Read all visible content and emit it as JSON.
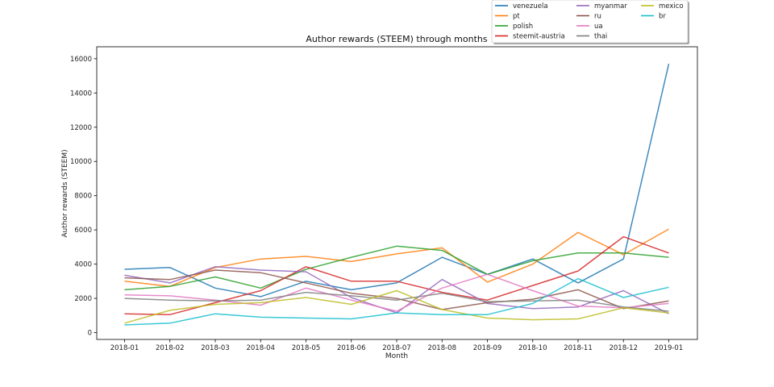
{
  "chart_data": {
    "type": "line",
    "title": "Author rewards (STEEM) through months",
    "xlabel": "Month",
    "ylabel": "Author rewards (STEEM)",
    "ylim": [
      -400,
      16700
    ],
    "yticks": [
      0,
      2000,
      4000,
      6000,
      8000,
      10000,
      12000,
      14000,
      16000
    ],
    "categories": [
      "2018-01",
      "2018-02",
      "2018-03",
      "2018-04",
      "2018-05",
      "2018-06",
      "2018-07",
      "2018-08",
      "2018-09",
      "2018-10",
      "2018-11",
      "2018-12",
      "2019-01"
    ],
    "grid": false,
    "legend_position": "top-right (outside, above plot)",
    "series": [
      {
        "name": "venezuela",
        "color": "#1f77b4",
        "values": [
          3700,
          3800,
          2600,
          2100,
          3000,
          2500,
          2900,
          4400,
          3400,
          4300,
          2900,
          4300,
          15700
        ]
      },
      {
        "name": "pt",
        "color": "#ff7f0e",
        "values": [
          3000,
          2700,
          3800,
          4300,
          4450,
          4150,
          4600,
          4950,
          2950,
          4000,
          5850,
          4550,
          6050
        ]
      },
      {
        "name": "polish",
        "color": "#2ca02c",
        "values": [
          2500,
          2700,
          3250,
          2600,
          3700,
          4400,
          5050,
          4800,
          3400,
          4200,
          4650,
          4650,
          4400
        ]
      },
      {
        "name": "steemit-austria",
        "color": "#d62728",
        "values": [
          1100,
          1050,
          1750,
          2450,
          3850,
          3000,
          3000,
          2350,
          1900,
          2750,
          3600,
          5600,
          4650
        ]
      },
      {
        "name": "myanmar",
        "color": "#9467bd",
        "values": [
          3350,
          2900,
          3850,
          3650,
          3550,
          2050,
          1150,
          3100,
          1700,
          1400,
          1500,
          2450,
          1100
        ]
      },
      {
        "name": "ru",
        "color": "#8c564b",
        "values": [
          3200,
          3100,
          3650,
          3500,
          2900,
          2300,
          2000,
          1350,
          1750,
          1950,
          2500,
          1400,
          1850
        ]
      },
      {
        "name": "ua",
        "color": "#e377c2",
        "values": [
          2200,
          2150,
          1900,
          1600,
          2600,
          1900,
          1250,
          2600,
          3400,
          2450,
          1550,
          1450,
          1700
        ]
      },
      {
        "name": "thai",
        "color": "#7f7f7f",
        "values": [
          2000,
          1900,
          1850,
          1900,
          2350,
          2150,
          1900,
          2300,
          1800,
          1850,
          1900,
          1500,
          1250
        ]
      },
      {
        "name": "mexico",
        "color": "#bcbd22",
        "values": [
          550,
          1300,
          1650,
          1750,
          2050,
          1650,
          2450,
          1350,
          850,
          750,
          800,
          1450,
          1150
        ]
      },
      {
        "name": "br",
        "color": "#17becf",
        "values": [
          450,
          550,
          1100,
          900,
          850,
          800,
          1150,
          1050,
          1050,
          1700,
          3150,
          2050,
          2650
        ]
      }
    ]
  }
}
